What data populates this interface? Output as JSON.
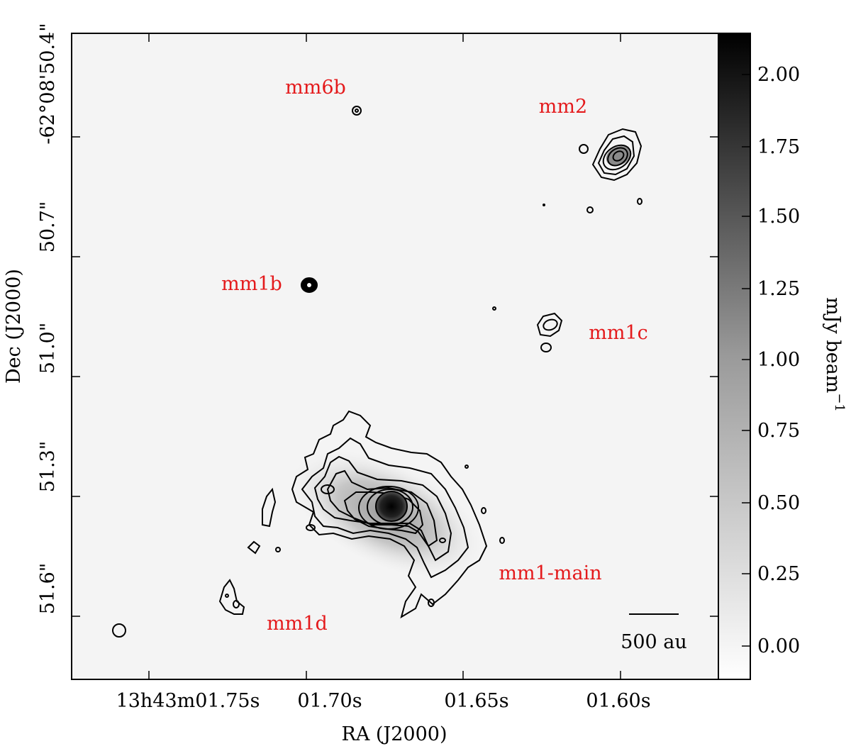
{
  "chart_data": {
    "type": "heatmap",
    "title": "",
    "xlabel": "RA (J2000)",
    "ylabel": "Dec (J2000)",
    "x_ticks": [
      "13h43m01.75s",
      "01.70s",
      "01.65s",
      "01.60s"
    ],
    "y_ticks": [
      "-62°08'50.4\"",
      "50.7\"",
      "51.0\"",
      "51.3\"",
      "51.6\""
    ],
    "colorbar": {
      "label": "mJy beam",
      "label_exponent": "−1",
      "ticks": [
        "2.00",
        "1.75",
        "1.50",
        "1.25",
        "1.00",
        "0.75",
        "0.50",
        "0.25",
        "0.00"
      ],
      "range": [
        -0.1,
        2.13
      ],
      "colormap": "gray_r"
    },
    "sources": [
      {
        "name": "mm6b"
      },
      {
        "name": "mm2"
      },
      {
        "name": "mm1b"
      },
      {
        "name": "mm1c"
      },
      {
        "name": "mm1-main"
      },
      {
        "name": "mm1d"
      }
    ],
    "scalebar": {
      "label": "500 au"
    },
    "colors": {
      "labels": "#e41a1c",
      "contours": "#000000",
      "background": "#f4f4f4"
    }
  }
}
